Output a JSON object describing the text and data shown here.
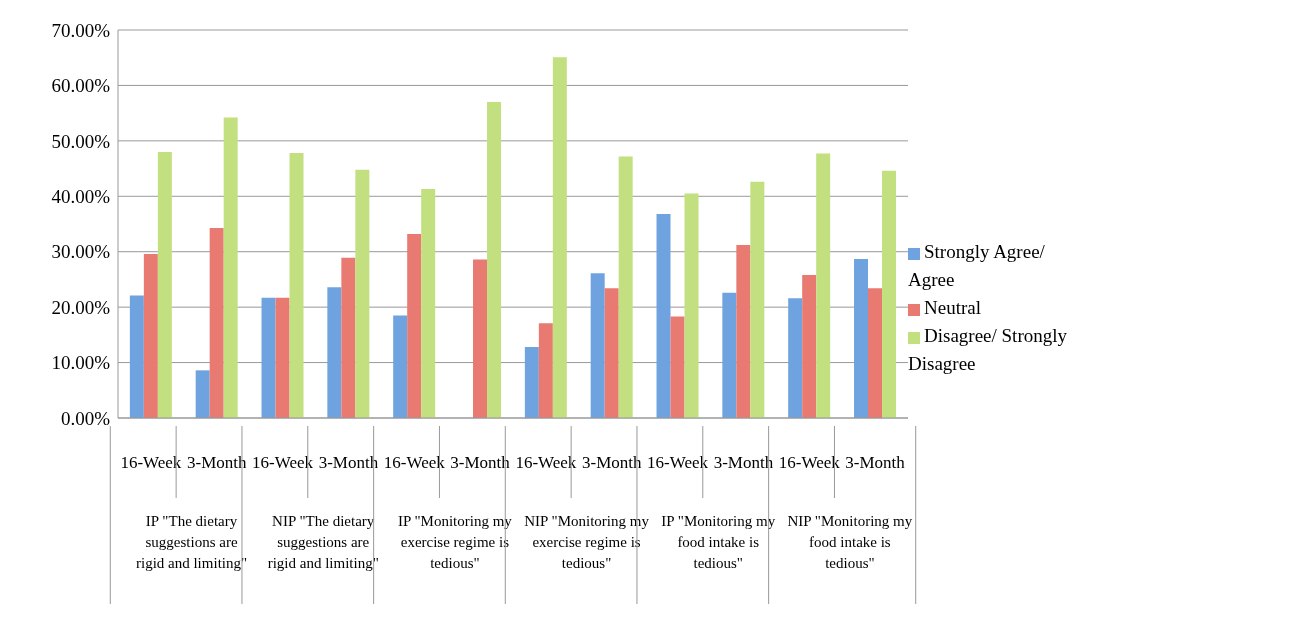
{
  "chart_data": {
    "type": "bar",
    "categories": [
      "16-Week",
      "3-Month",
      "16-Week",
      "3-Month",
      "16-Week",
      "3-Month",
      "16-Week",
      "3-Month",
      "16-Week",
      "3-Month",
      "16-Week",
      "3-Month"
    ],
    "annotations": [
      "IP \"The dietary suggestions are rigid and limiting\"",
      "NIP \"The dietary suggestions are rigid and limiting\"",
      "IP \"Monitoring my exercise regime is tedious\"",
      "NIP \"Monitoring my exercise regime is tedious\"",
      "IP \"Monitoring my food intake is tedious\"",
      "NIP \"Monitoring my food intake is tedious\""
    ],
    "series": [
      {
        "name": "Strongly Agree/ Agree",
        "color": "#6fa3e0",
        "values": [
          22.1,
          8.6,
          21.7,
          23.6,
          18.5,
          0,
          12.8,
          26.1,
          36.8,
          22.6,
          21.6,
          28.7
        ]
      },
      {
        "name": "Neutral",
        "color": "#e87a72",
        "values": [
          29.6,
          34.3,
          21.7,
          28.9,
          33.2,
          28.6,
          17.1,
          23.4,
          18.3,
          31.2,
          25.8,
          23.4
        ]
      },
      {
        "name": "Disagree/ Strongly Disagree",
        "color": "#c3e080",
        "values": [
          48.0,
          54.2,
          47.8,
          44.8,
          41.3,
          57.0,
          65.1,
          47.2,
          40.5,
          42.6,
          47.7,
          44.6
        ]
      }
    ],
    "ylim": [
      0,
      70
    ],
    "yticks": [
      {
        "value": 0,
        "label": "0.00%"
      },
      {
        "value": 10,
        "label": "10.00%"
      },
      {
        "value": 20,
        "label": "20.00%"
      },
      {
        "value": 30,
        "label": "30.00%"
      },
      {
        "value": 40,
        "label": "40.00%"
      },
      {
        "value": 50,
        "label": "50.00%"
      },
      {
        "value": 60,
        "label": "60.00%"
      },
      {
        "value": 70,
        "label": "70.00%"
      }
    ],
    "grid": "y",
    "legend": "right"
  }
}
